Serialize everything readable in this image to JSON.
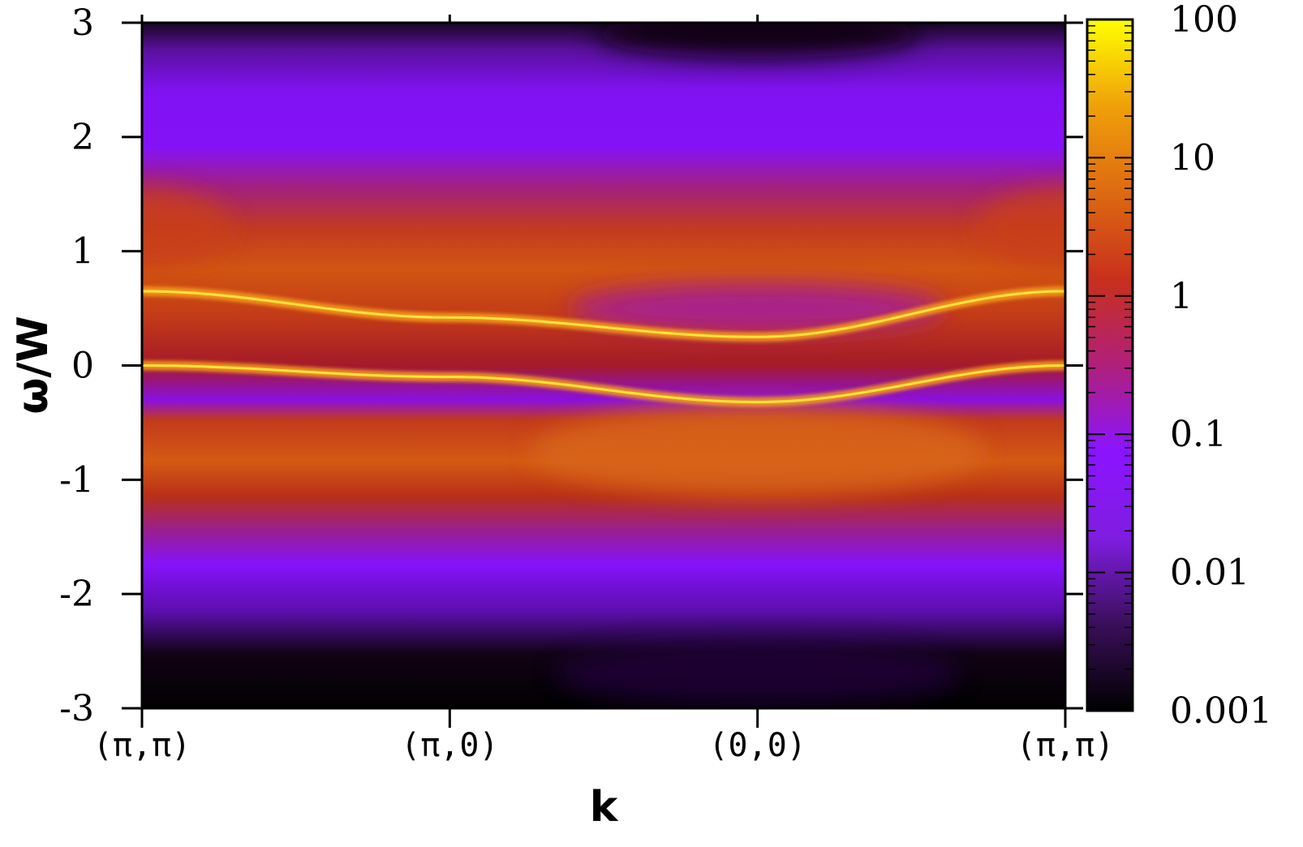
{
  "chart_data": {
    "type": "heatmap",
    "xlabel": "k",
    "ylabel": "ω/W",
    "ylim": [
      -3,
      3
    ],
    "x_tick_labels": [
      "(π,π)",
      "(π,0)",
      "(0,0)",
      "(π,π)"
    ],
    "y_ticks": [
      -3,
      -2,
      -1,
      0,
      1,
      2,
      3
    ],
    "colorbar": {
      "scale": "log",
      "range": [
        0.001,
        100
      ],
      "tick_labels": [
        "0.001",
        "0.01",
        "0.1",
        "1",
        "10",
        "100"
      ],
      "colormap": [
        "#000000",
        "#3a0f5a",
        "#7f1de0",
        "#8b14ff",
        "#b0207a",
        "#c8301c",
        "#dd6a12",
        "#f0a00a",
        "#ffff00"
      ]
    },
    "bands": [
      {
        "name": "upper quasiparticle band",
        "k_path": [
          0,
          1,
          2,
          3
        ],
        "omega": [
          0.65,
          0.42,
          0.25,
          0.65
        ]
      },
      {
        "name": "lower quasiparticle band",
        "k_path": [
          0,
          1,
          2,
          3
        ],
        "omega": [
          0.0,
          -0.1,
          -0.32,
          0.0
        ]
      }
    ],
    "grid": false,
    "legend": "none"
  }
}
